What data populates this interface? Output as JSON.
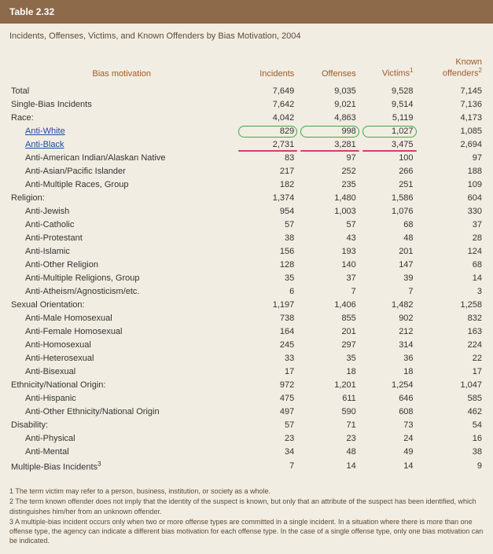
{
  "header": {
    "title": "Table 2.32"
  },
  "subtitle": "Incidents, Offenses, Victims, and Known Offenders by Bias Motivation, 2004",
  "columns": {
    "c0": "Bias motivation",
    "c1": "Incidents",
    "c2": "Offenses",
    "c3": "Victims",
    "c3_sup": "1",
    "c4_line1": "Known",
    "c4_line2": "offenders",
    "c4_sup": "2"
  },
  "rows": [
    {
      "label": "Total",
      "indent": 0,
      "vals": [
        "7,649",
        "9,035",
        "9,528",
        "7,145"
      ]
    },
    {
      "label": "Single-Bias Incidents",
      "indent": 0,
      "vals": [
        "7,642",
        "9,021",
        "9,514",
        "7,136"
      ]
    },
    {
      "label": "Race:",
      "indent": 0,
      "vals": [
        "4,042",
        "4,863",
        "5,119",
        "4,173"
      ]
    },
    {
      "label": "Anti-White",
      "indent": 2,
      "link": true,
      "vals": [
        "829",
        "998",
        "1,027",
        "1,085"
      ],
      "hl": "green"
    },
    {
      "label": "Anti-Black",
      "indent": 2,
      "link": true,
      "vals": [
        "2,731",
        "3,281",
        "3,475",
        "2,694"
      ],
      "hl": "pink"
    },
    {
      "label": "Anti-American Indian/Alaskan Native",
      "indent": 1,
      "vals": [
        "83",
        "97",
        "100",
        "97"
      ]
    },
    {
      "label": "Anti-Asian/Pacific Islander",
      "indent": 1,
      "vals": [
        "217",
        "252",
        "266",
        "188"
      ]
    },
    {
      "label": "Anti-Multiple Races, Group",
      "indent": 1,
      "vals": [
        "182",
        "235",
        "251",
        "109"
      ]
    },
    {
      "label": "Religion:",
      "indent": 0,
      "vals": [
        "1,374",
        "1,480",
        "1,586",
        "604"
      ]
    },
    {
      "label": "Anti-Jewish",
      "indent": 1,
      "vals": [
        "954",
        "1,003",
        "1,076",
        "330"
      ]
    },
    {
      "label": "Anti-Catholic",
      "indent": 1,
      "vals": [
        "57",
        "57",
        "68",
        "37"
      ]
    },
    {
      "label": "Anti-Protestant",
      "indent": 1,
      "vals": [
        "38",
        "43",
        "48",
        "28"
      ]
    },
    {
      "label": "Anti-Islamic",
      "indent": 1,
      "vals": [
        "156",
        "193",
        "201",
        "124"
      ]
    },
    {
      "label": "Anti-Other Religion",
      "indent": 1,
      "vals": [
        "128",
        "140",
        "147",
        "68"
      ]
    },
    {
      "label": "Anti-Multiple Religions, Group",
      "indent": 1,
      "vals": [
        "35",
        "37",
        "39",
        "14"
      ]
    },
    {
      "label": "Anti-Atheism/Agnosticism/etc.",
      "indent": 1,
      "vals": [
        "6",
        "7",
        "7",
        "3"
      ]
    },
    {
      "label": "Sexual Orientation:",
      "indent": 0,
      "vals": [
        "1,197",
        "1,406",
        "1,482",
        "1,258"
      ]
    },
    {
      "label": "Anti-Male Homosexual",
      "indent": 1,
      "vals": [
        "738",
        "855",
        "902",
        "832"
      ]
    },
    {
      "label": "Anti-Female Homosexual",
      "indent": 1,
      "vals": [
        "164",
        "201",
        "212",
        "163"
      ]
    },
    {
      "label": "Anti-Homosexual",
      "indent": 1,
      "vals": [
        "245",
        "297",
        "314",
        "224"
      ]
    },
    {
      "label": "Anti-Heterosexual",
      "indent": 1,
      "vals": [
        "33",
        "35",
        "36",
        "22"
      ]
    },
    {
      "label": "Anti-Bisexual",
      "indent": 1,
      "vals": [
        "17",
        "18",
        "18",
        "17"
      ]
    },
    {
      "label": "Ethnicity/National Origin:",
      "indent": 0,
      "vals": [
        "972",
        "1,201",
        "1,254",
        "1,047"
      ]
    },
    {
      "label": "Anti-Hispanic",
      "indent": 1,
      "vals": [
        "475",
        "611",
        "646",
        "585"
      ]
    },
    {
      "label": "Anti-Other Ethnicity/National Origin",
      "indent": 1,
      "vals": [
        "497",
        "590",
        "608",
        "462"
      ]
    },
    {
      "label": "Disability:",
      "indent": 0,
      "vals": [
        "57",
        "71",
        "73",
        "54"
      ]
    },
    {
      "label": "Anti-Physical",
      "indent": 1,
      "vals": [
        "23",
        "23",
        "24",
        "16"
      ]
    },
    {
      "label": "Anti-Mental",
      "indent": 1,
      "vals": [
        "34",
        "48",
        "49",
        "38"
      ]
    },
    {
      "label": "Multiple-Bias Incidents",
      "sup": "3",
      "indent": 0,
      "vals": [
        "7",
        "14",
        "14",
        "9"
      ]
    }
  ],
  "footnotes": {
    "f1": "1 The term victim may refer to a person, business, institution, or society as a whole.",
    "f2": "2 The term known offender does not imply that the identity of the suspect is known, but only that an attribute of the suspect has been identified, which distinguishes him/her from an unknown offender.",
    "f3": "3 A multiple-bias incident occurs only when two or more offense types are committed in a single incident. In a situation where there is more than one offense type, the agency can indicate a different bias motivation for each offense type. In the case of a single offense type, only one bias motivation can be indicated."
  },
  "style": {
    "header_bg": "#8c6a4a",
    "body_bg": "#f2ede2",
    "col_header_color": "#9c5a2a",
    "link_color": "#1a4aa8",
    "green": "#3aa84a",
    "pink": "#d63a7a"
  }
}
